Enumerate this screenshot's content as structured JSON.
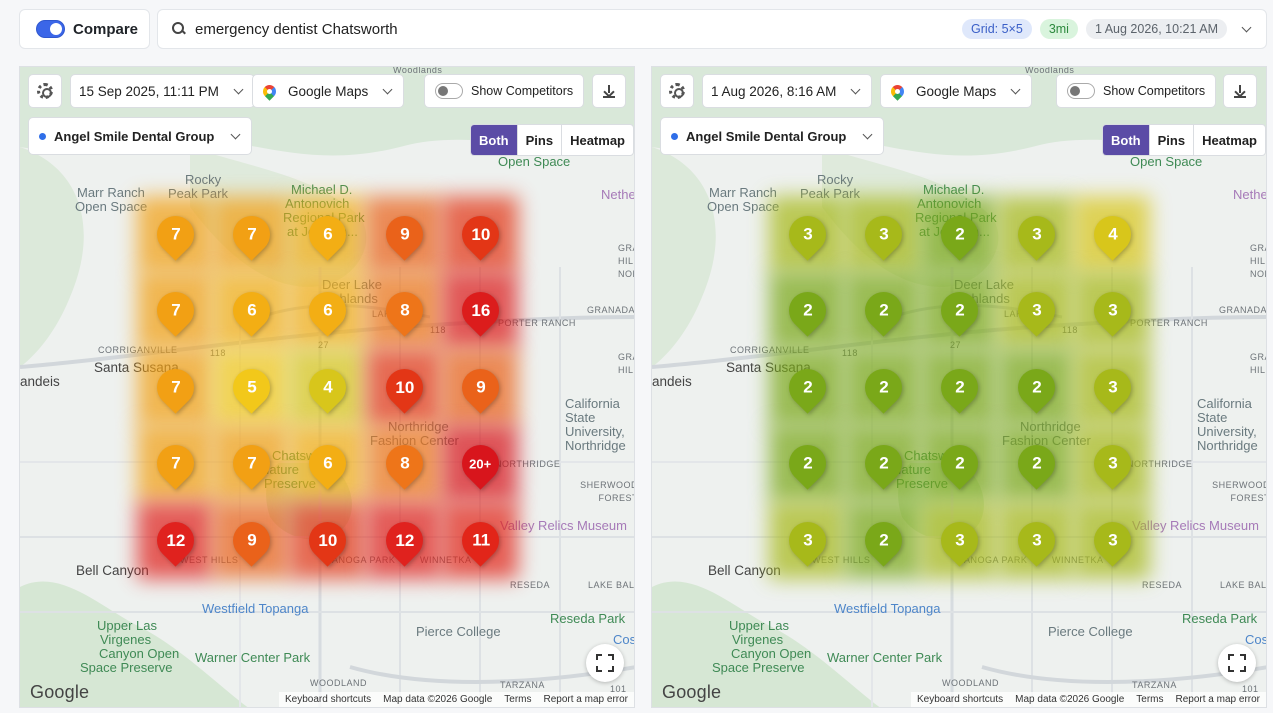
{
  "topbar": {
    "compare_label": "Compare",
    "query": "emergency dentist Chatsworth",
    "grid_badge": "Grid: 5×5",
    "radius_badge": "3mi",
    "date_badge": "1 Aug 2026, 10:21 AM"
  },
  "colors": {
    "accent": "#3b66e8",
    "view_active": "#5b4ca6",
    "rank_colors": {
      "2": "#7aa819",
      "3": "#a7b91a",
      "4": "#d8c61b",
      "5": "#f2c81a",
      "6": "#f3ae14",
      "7": "#f2a014",
      "8": "#ee7519",
      "9": "#ea621a",
      "10": "#e33616",
      "11": "#e22519",
      "12": "#e0221e",
      "16": "#dc1c1c",
      "20+": "#d8151c"
    }
  },
  "map_labels": {
    "woodlands": "Woodlands",
    "rocky_peak_1": "Rocky",
    "rocky_peak_2": "Peak Park",
    "marr_ranch_1": "Marr Ranch",
    "marr_ranch_2": "Open Space",
    "michael_1": "Michael D.",
    "michael_2": "Antonovich",
    "michael_3": "Regional Park",
    "michael_4": "at Joughin...",
    "open_space": "Open Space",
    "nethe": "Nethe",
    "granada_hills": "GRANADA HILLS NORTH",
    "deer_lake_1": "Deer Lake",
    "deer_lake_2": "Highlands",
    "lakes": "LAKES",
    "granada": "GRANADA",
    "porter_ranch": "PORTER RANCH",
    "corriganville": "CORRIGANVILLE",
    "santa_susana": "Santa Susana",
    "andeis": "andeis",
    "grana": "GRANA HILLS",
    "california_state_1": "California",
    "california_state_2": "State",
    "california_state_3": "University,",
    "california_state_4": "Northridge",
    "northridge_fashion_1": "Northridge",
    "northridge_fashion_2": "Fashion Center",
    "northridge": "NORTHRIDGE",
    "sherwood": "SHERWOOD FOREST",
    "valley_relics": "Valley Relics Museum",
    "chatsworth_nature_1": "Chatsworth",
    "chatsworth_nature_2": "Nature",
    "chatsworth_nature_3": "Preserve",
    "west_hills": "WEST HILLS",
    "canoga_park": "CANOGA PARK",
    "winnetka": "WINNETKA",
    "bell_canyon": "Bell Canyon",
    "reseda": "RESEDA",
    "lake_balboa": "LAKE BALBOA",
    "westfield_topanga": "Westfield Topanga",
    "reseda_park": "Reseda Park",
    "upper_las_virgenes_1": "Upper Las",
    "upper_las_virgenes_2": "Virgenes",
    "upper_las_virgenes_3": "Canyon Open",
    "upper_las_virgenes_4": "Space Preserve",
    "pierce_college": "Pierce College",
    "warner_center": "Warner Center Park",
    "cos": "Cos",
    "woodland": "WOODLAND",
    "tarzana": "TARZANA",
    "hwy_118": "118",
    "hwy_27": "27",
    "hwy_101": "101"
  },
  "panels": [
    {
      "date": "15 Sep 2025, 11:11 PM",
      "source": "Google Maps",
      "competitors_label": "Show Competitors",
      "business": "Angel Smile Dental Group",
      "views": [
        "Both",
        "Pins",
        "Heatmap"
      ],
      "active_view": "Both",
      "grid": [
        [
          "7",
          "7",
          "6",
          "9",
          "10"
        ],
        [
          "7",
          "6",
          "6",
          "8",
          "16"
        ],
        [
          "7",
          "5",
          "4",
          "10",
          "9"
        ],
        [
          "7",
          "7",
          "6",
          "8",
          "20+"
        ],
        [
          "12",
          "9",
          "10",
          "12",
          "11"
        ]
      ],
      "google": "Google",
      "attribution": [
        "Keyboard shortcuts",
        "Map data ©2026 Google",
        "Terms",
        "Report a map error"
      ]
    },
    {
      "date": "1 Aug 2026, 8:16 AM",
      "source": "Google Maps",
      "competitors_label": "Show Competitors",
      "business": "Angel Smile Dental Group",
      "views": [
        "Both",
        "Pins",
        "Heatmap"
      ],
      "active_view": "Both",
      "grid": [
        [
          "3",
          "3",
          "2",
          "3",
          "4"
        ],
        [
          "2",
          "2",
          "2",
          "3",
          "3"
        ],
        [
          "2",
          "2",
          "2",
          "2",
          "3"
        ],
        [
          "2",
          "2",
          "2",
          "2",
          "3"
        ],
        [
          "3",
          "2",
          "3",
          "3",
          "3"
        ]
      ],
      "google": "Google",
      "attribution": [
        "Keyboard shortcuts",
        "Map data ©2026 Google",
        "Terms",
        "Report a map error"
      ]
    }
  ]
}
